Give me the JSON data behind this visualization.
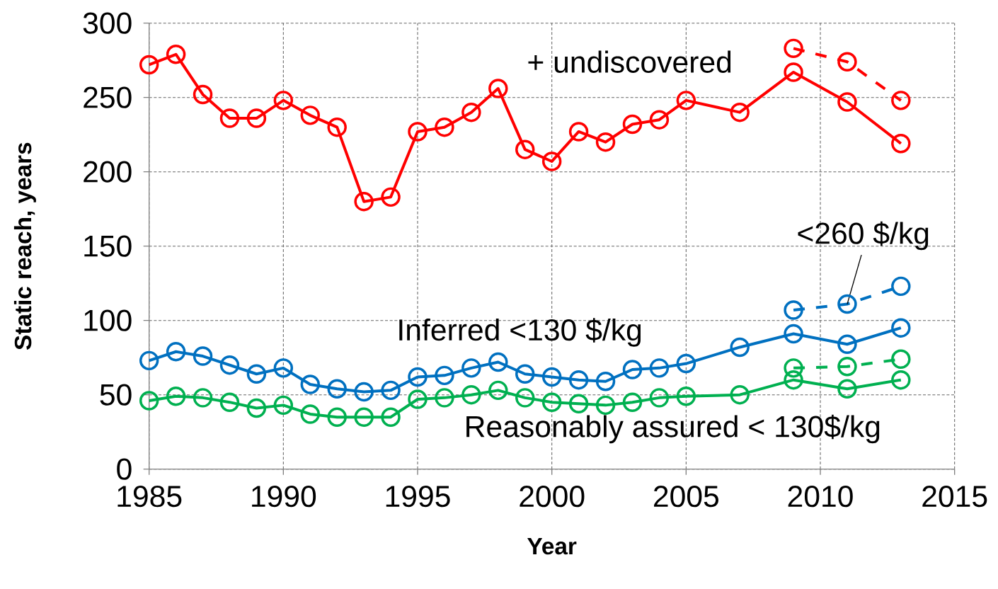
{
  "chart_data": {
    "type": "line",
    "xlabel": "Year",
    "ylabel": "Static reach, years",
    "xlim": [
      1985,
      2015
    ],
    "xticks": [
      1985,
      1990,
      1995,
      2000,
      2005,
      2010,
      2015
    ],
    "ylim": [
      0,
      300
    ],
    "yticks": [
      0,
      50,
      100,
      150,
      200,
      250,
      300
    ],
    "grid": true,
    "legend": "bottom right",
    "marker": "circle",
    "series": [
      {
        "name": "+ undiscovered",
        "color": "#ff0000",
        "line_style": "solid",
        "x": [
          1985,
          1986,
          1987,
          1988,
          1989,
          1990,
          1991,
          1992,
          1993,
          1994,
          1995,
          1996,
          1997,
          1998,
          1999,
          2000,
          2001,
          2002,
          2003,
          2004,
          2005,
          2007,
          2009,
          2011,
          2013
        ],
        "values": [
          272,
          279,
          252,
          236,
          236,
          248,
          238,
          230,
          180,
          183,
          227,
          230,
          240,
          256,
          215,
          207,
          227,
          220,
          232,
          235,
          248,
          240,
          267,
          247,
          219
        ]
      },
      {
        "color": "#ff0000",
        "line_style": "dashed",
        "x": [
          2009,
          2011,
          2013
        ],
        "values": [
          283,
          274,
          248
        ]
      },
      {
        "name": "Inferred <130 $/kg",
        "color": "#0070c0",
        "line_style": "solid",
        "x": [
          1985,
          1986,
          1987,
          1988,
          1989,
          1990,
          1991,
          1992,
          1993,
          1994,
          1995,
          1996,
          1997,
          1998,
          1999,
          2000,
          2001,
          2002,
          2003,
          2004,
          2005,
          2007,
          2009,
          2011,
          2013
        ],
        "values": [
          73,
          79,
          76,
          70,
          64,
          68,
          57,
          54,
          52,
          53,
          62,
          63,
          68,
          72,
          64,
          62,
          60,
          59,
          67,
          68,
          71,
          82,
          91,
          84,
          95
        ]
      },
      {
        "name": "<260 $/kg",
        "color": "#0070c0",
        "line_style": "dashed",
        "x": [
          2009,
          2011,
          2013
        ],
        "values": [
          107,
          111,
          123
        ]
      },
      {
        "name": "Reasonably assured < 130$/kg",
        "color": "#00b050",
        "line_style": "solid",
        "x": [
          1985,
          1986,
          1987,
          1988,
          1989,
          1990,
          1991,
          1992,
          1993,
          1994,
          1995,
          1996,
          1997,
          1998,
          1999,
          2000,
          2001,
          2002,
          2003,
          2004,
          2005,
          2007,
          2009,
          2011,
          2013
        ],
        "values": [
          46,
          49,
          48,
          45,
          41,
          43,
          37,
          35,
          35,
          35,
          47,
          48,
          50,
          53,
          48,
          45,
          44,
          43,
          45,
          48,
          49,
          50,
          60,
          54,
          60
        ]
      },
      {
        "color": "#00b050",
        "line_style": "dashed",
        "x": [
          2009,
          2011,
          2013
        ],
        "values": [
          68,
          69,
          74
        ]
      }
    ]
  }
}
